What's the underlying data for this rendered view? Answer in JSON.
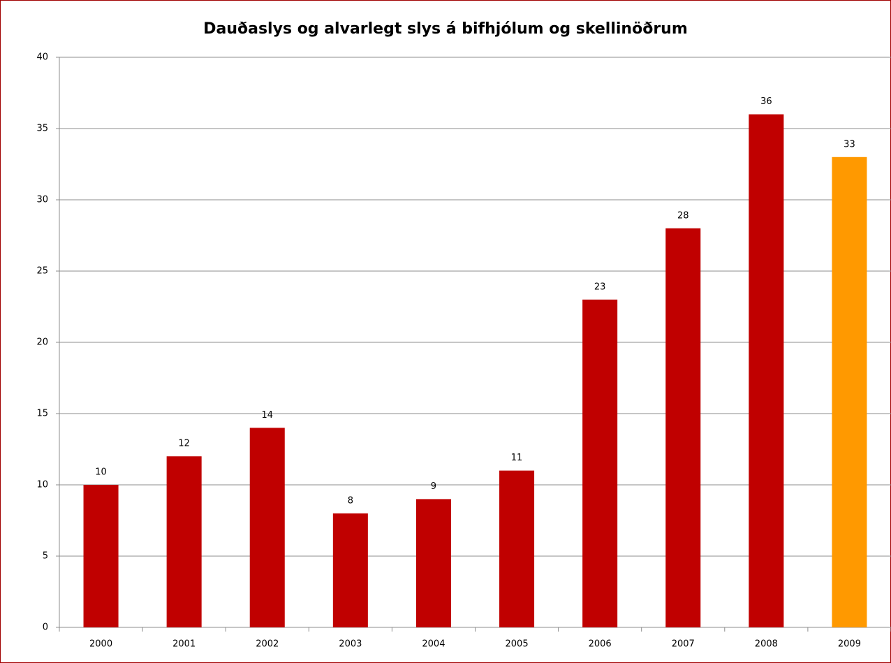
{
  "chart_data": {
    "type": "bar",
    "title": "Dauðaslys og alvarlegt slys á bifhjólum og skellinöðrum",
    "categories": [
      "2000",
      "2001",
      "2002",
      "2003",
      "2004",
      "2005",
      "2006",
      "2007",
      "2008",
      "2009"
    ],
    "values": [
      10,
      12,
      14,
      8,
      9,
      11,
      23,
      28,
      36,
      33
    ],
    "colors": [
      "#c00000",
      "#c00000",
      "#c00000",
      "#c00000",
      "#c00000",
      "#c00000",
      "#c00000",
      "#c00000",
      "#c00000",
      "#ff9900"
    ],
    "ylim": [
      0,
      40
    ],
    "yticks": [
      0,
      5,
      10,
      15,
      20,
      25,
      30,
      35,
      40
    ],
    "grid": true
  }
}
